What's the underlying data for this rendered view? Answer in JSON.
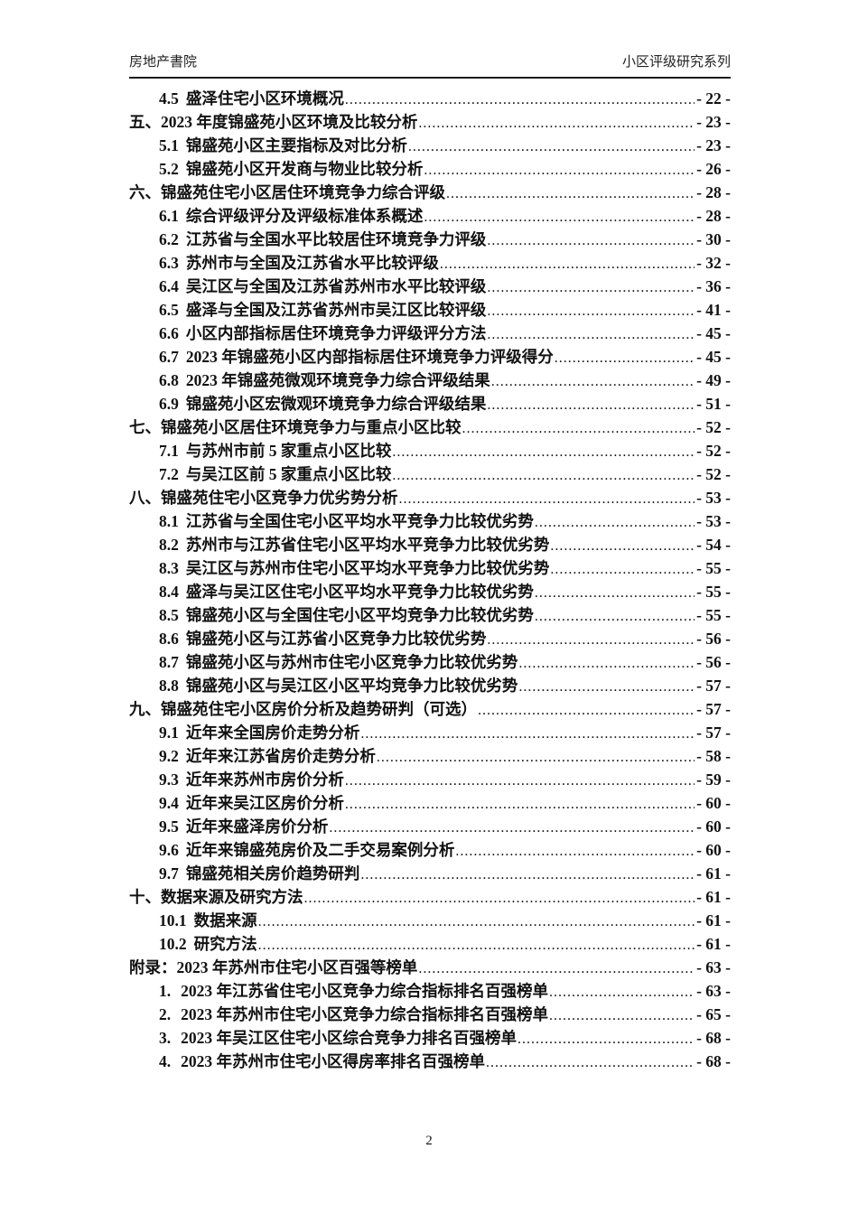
{
  "page": {
    "header_left": "房地产書院",
    "header_right": "小区评级研究系列",
    "footer_page_number": "2"
  },
  "toc": {
    "entries": [
      {
        "level": 2,
        "num": "4.5",
        "title": "盛泽住宅小区环境概况",
        "page_label": "- 22 -"
      },
      {
        "level": 1,
        "num": "五、",
        "title": "2023 年度锦盛苑小区环境及比较分析",
        "page_label": "- 23 -"
      },
      {
        "level": 2,
        "num": "5.1",
        "title": "锦盛苑小区主要指标及对比分析",
        "page_label": "- 23 -"
      },
      {
        "level": 2,
        "num": "5.2",
        "title": "锦盛苑小区开发商与物业比较分析",
        "page_label": "- 26 -"
      },
      {
        "level": 1,
        "num": "六、",
        "title": "锦盛苑住宅小区居住环境竞争力综合评级",
        "page_label": "- 28 -"
      },
      {
        "level": 2,
        "num": "6.1",
        "title": "综合评级评分及评级标准体系概述",
        "page_label": "- 28 -"
      },
      {
        "level": 2,
        "num": "6.2",
        "title": "江苏省与全国水平比较居住环境竞争力评级",
        "page_label": "- 30 -"
      },
      {
        "level": 2,
        "num": "6.3",
        "title": "苏州市与全国及江苏省水平比较评级",
        "page_label": "- 32 -"
      },
      {
        "level": 2,
        "num": "6.4",
        "title": "吴江区与全国及江苏省苏州市水平比较评级",
        "page_label": "- 36 -"
      },
      {
        "level": 2,
        "num": "6.5",
        "title": "盛泽与全国及江苏省苏州市吴江区比较评级",
        "page_label": "- 41 -"
      },
      {
        "level": 2,
        "num": "6.6",
        "title": "小区内部指标居住环境竞争力评级评分方法",
        "page_label": "- 45 -"
      },
      {
        "level": 2,
        "num": "6.7",
        "title": "2023 年锦盛苑小区内部指标居住环境竞争力评级得分",
        "page_label": "- 45 -"
      },
      {
        "level": 2,
        "num": "6.8",
        "title": "2023 年锦盛苑微观环境竞争力综合评级结果",
        "page_label": "- 49 -"
      },
      {
        "level": 2,
        "num": "6.9",
        "title": "锦盛苑小区宏微观环境竞争力综合评级结果",
        "page_label": "- 51 -"
      },
      {
        "level": 1,
        "num": "七、",
        "title": "锦盛苑小区居住环境竞争力与重点小区比较",
        "page_label": "- 52 -"
      },
      {
        "level": 2,
        "num": "7.1",
        "title": "与苏州市前 5 家重点小区比较",
        "page_label": "- 52 -"
      },
      {
        "level": 2,
        "num": "7.2",
        "title": "与吴江区前 5 家重点小区比较",
        "page_label": "- 52 -"
      },
      {
        "level": 1,
        "num": "八、",
        "title": "锦盛苑住宅小区竞争力优劣势分析",
        "page_label": "- 53 -"
      },
      {
        "level": 2,
        "num": "8.1",
        "title": "江苏省与全国住宅小区平均水平竞争力比较优劣势",
        "page_label": "- 53 -"
      },
      {
        "level": 2,
        "num": "8.2",
        "title": "苏州市与江苏省住宅小区平均水平竞争力比较优劣势",
        "page_label": "- 54 -"
      },
      {
        "level": 2,
        "num": "8.3",
        "title": "吴江区与苏州市住宅小区平均水平竞争力比较优劣势",
        "page_label": "- 55 -"
      },
      {
        "level": 2,
        "num": "8.4",
        "title": "盛泽与吴江区住宅小区平均水平竞争力比较优劣势",
        "page_label": "- 55 -"
      },
      {
        "level": 2,
        "num": "8.5",
        "title": "锦盛苑小区与全国住宅小区平均竞争力比较优劣势",
        "page_label": "- 55 -"
      },
      {
        "level": 2,
        "num": "8.6",
        "title": "锦盛苑小区与江苏省小区竞争力比较优劣势",
        "page_label": "- 56 -"
      },
      {
        "level": 2,
        "num": "8.7",
        "title": "锦盛苑小区与苏州市住宅小区竞争力比较优劣势",
        "page_label": "- 56 -"
      },
      {
        "level": 2,
        "num": "8.8",
        "title": "锦盛苑小区与吴江区小区平均竞争力比较优劣势",
        "page_label": "- 57 -"
      },
      {
        "level": 1,
        "num": "九、",
        "title": "锦盛苑住宅小区房价分析及趋势研判（可选） ",
        "page_label": "- 57 -"
      },
      {
        "level": 2,
        "num": "9.1",
        "title": "近年来全国房价走势分析",
        "page_label": "- 57 -"
      },
      {
        "level": 2,
        "num": "9.2",
        "title": "近年来江苏省房价走势分析",
        "page_label": "- 58 -"
      },
      {
        "level": 2,
        "num": "9.3",
        "title": "近年来苏州市房价分析",
        "page_label": "- 59 -"
      },
      {
        "level": 2,
        "num": "9.4",
        "title": "近年来吴江区房价分析",
        "page_label": "- 60 -"
      },
      {
        "level": 2,
        "num": "9.5",
        "title": "近年来盛泽房价分析",
        "page_label": "- 60 -"
      },
      {
        "level": 2,
        "num": "9.6",
        "title": "近年来锦盛苑房价及二手交易案例分析",
        "page_label": "- 60 -"
      },
      {
        "level": 2,
        "num": "9.7",
        "title": "锦盛苑相关房价趋势研判",
        "page_label": "- 61 -"
      },
      {
        "level": 1,
        "num": "十、",
        "title": "数据来源及研究方法",
        "page_label": "- 61 -"
      },
      {
        "level": 2,
        "num": "10.1",
        "title": "数据来源",
        "page_label": "- 61 -"
      },
      {
        "level": 2,
        "num": "10.2",
        "title": "研究方法",
        "page_label": "- 61 -"
      },
      {
        "level": 1,
        "num": "附录：",
        "title": "2023 年苏州市住宅小区百强等榜单",
        "page_label": "- 63 -"
      },
      {
        "level": 3,
        "num": "1.",
        "title": "2023 年江苏省住宅小区竞争力综合指标排名百强榜单",
        "page_label": "- 63 -"
      },
      {
        "level": 3,
        "num": "2.",
        "title": "2023 年苏州市住宅小区竞争力综合指标排名百强榜单",
        "page_label": "- 65 -"
      },
      {
        "level": 3,
        "num": "3.",
        "title": "2023 年吴江区住宅小区综合竞争力排名百强榜单",
        "page_label": "- 68 -"
      },
      {
        "level": 3,
        "num": "4.",
        "title": "2023 年苏州市住宅小区得房率排名百强榜单",
        "page_label": "- 68 -"
      }
    ]
  }
}
